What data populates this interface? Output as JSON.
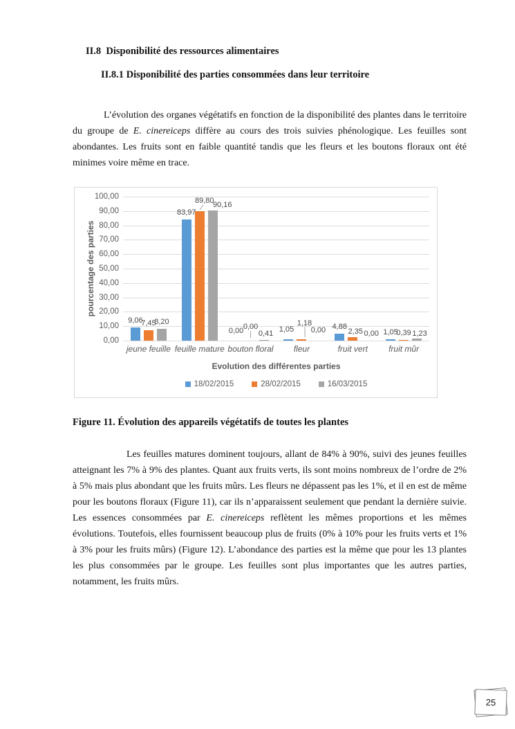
{
  "document": {
    "heading1": "II.8  Disponibilité des ressources alimentaires",
    "heading2": "II.8.1 Disponibilité des parties consommées dans leur territoire",
    "paragraph1_segments": [
      {
        "text": "L’évolution des organes végétatifs en fonction de la disponibilité des plantes dans le territoire du groupe de ",
        "italic": false
      },
      {
        "text": "E. cinereiceps",
        "italic": true
      },
      {
        "text": " diffère au cours des trois suivies phénologique. Les feuilles sont abondantes. Les fruits sont en faible quantité tandis que les fleurs et les boutons floraux ont été minimes voire même en trace.",
        "italic": false
      }
    ],
    "figure_caption": "Figure 11. Évolution des appareils végétatifs de toutes les plantes",
    "paragraph2_segments": [
      {
        "text": "Les feuilles matures dominent toujours, allant de 84% à 90%, suivi des jeunes feuilles atteignant les 7% à 9% des plantes. Quant aux fruits verts, ils sont moins nombreux de l’ordre de 2% à 5% mais plus abondant que les fruits mûrs. Les fleurs ne dépassent pas les 1%, et il en est de même pour les boutons floraux (Figure 11), car ils n’apparaissent seulement que pendant la dernière suivie. Les essences consommées par ",
        "italic": false
      },
      {
        "text": "E. cinereiceps",
        "italic": true
      },
      {
        "text": " reflètent les mêmes proportions et les mêmes évolutions. Toutefois, elles fournissent beaucoup plus de fruits (0% à 10% pour les fruits verts et 1% à 3% pour les fruits mûrs) (Figure 12). L’abondance des parties est la même que pour les 13 plantes les plus consommées par le groupe. Les feuilles sont plus importantes que les autres parties, notamment, les fruits mûrs.",
        "italic": false
      }
    ],
    "page_number": "25"
  },
  "chart_data": {
    "type": "bar",
    "title": "",
    "xlabel": "Evolution des différentes parties",
    "ylabel": "pourcentage des parties",
    "ylim": [
      0,
      100
    ],
    "ytick_step": 10,
    "ytick_labels": [
      "0,00",
      "10,00",
      "20,00",
      "30,00",
      "40,00",
      "50,00",
      "60,00",
      "70,00",
      "80,00",
      "90,00",
      "100,00"
    ],
    "grid": true,
    "legend_position": "bottom",
    "categories": [
      "jeune feuille",
      "feuille mature",
      "bouton floral",
      "fleur",
      "fruit vert",
      "fruit mûr"
    ],
    "series": [
      {
        "name": "18/02/2015",
        "color": "#5B9BD5",
        "values": [
          9.06,
          83.97,
          0.0,
          1.05,
          4.88,
          1.05
        ],
        "labels": [
          "9,06",
          "83,97",
          "0,00",
          "1,05",
          "4,88",
          "1,05"
        ]
      },
      {
        "name": "28/02/2015",
        "color": "#ED7D31",
        "values": [
          7.45,
          89.8,
          0.0,
          1.18,
          2.35,
          0.39
        ],
        "labels": [
          "7,45",
          "89,80",
          "0,00",
          "1,18",
          "2,35",
          "0,39"
        ]
      },
      {
        "name": "16/03/2015",
        "color": "#A5A5A5",
        "values": [
          8.2,
          90.16,
          0.41,
          0.0,
          0.0,
          1.23
        ],
        "labels": [
          "8,20",
          "90,16",
          "0,41",
          "0,00",
          "0,00",
          "1,23"
        ]
      }
    ]
  }
}
